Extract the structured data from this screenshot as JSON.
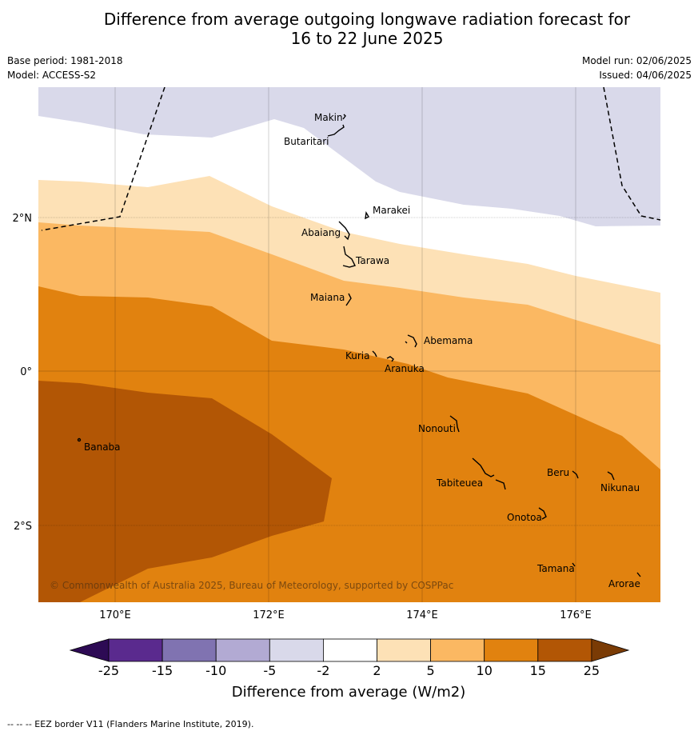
{
  "title_line1": "Difference from average outgoing longwave radiation forecast for",
  "title_line2": "16 to 22 June 2025",
  "base_period": "Base period: 1981-2018",
  "model": "Model: ACCESS-S2",
  "model_run": "Model run: 02/06/2025",
  "issued": "Issued: 04/06/2025",
  "copyright": "© Commonwealth of Australia 2025, Bureau of Meteorology, supported by COSPPac",
  "axes": {
    "lat_labels": [
      "2°N",
      "0°",
      "2°S"
    ],
    "lon_labels": [
      "170°E",
      "172°E",
      "174°E",
      "176°E"
    ]
  },
  "islands": [
    {
      "name": "Makin"
    },
    {
      "name": "Butaritari"
    },
    {
      "name": "Marakei"
    },
    {
      "name": "Abaiang"
    },
    {
      "name": "Tarawa"
    },
    {
      "name": "Maiana"
    },
    {
      "name": "Abemama"
    },
    {
      "name": "Kuria"
    },
    {
      "name": "Aranuka"
    },
    {
      "name": "Banaba"
    },
    {
      "name": "Nonouti"
    },
    {
      "name": "Beru"
    },
    {
      "name": "Nikunau"
    },
    {
      "name": "Tabiteuea"
    },
    {
      "name": "Onotoa"
    },
    {
      "name": "Tamana"
    },
    {
      "name": "Arorae"
    }
  ],
  "legend": {
    "title": "Difference from average (W/m2)",
    "ticks": [
      "-25",
      "-15",
      "-10",
      "-5",
      "-2",
      "2",
      "5",
      "10",
      "15",
      "25"
    ],
    "colors": [
      "#2d0a54",
      "#5a2a8e",
      "#8073b1",
      "#b2aad3",
      "#d9d9ea",
      "#ffffff",
      "#fde1b6",
      "#fbb862",
      "#e1820f",
      "#b25605",
      "#7a3b05"
    ]
  },
  "footer": "-- -- -- EEZ border V11 (Flanders Marine Institute, 2019)."
}
